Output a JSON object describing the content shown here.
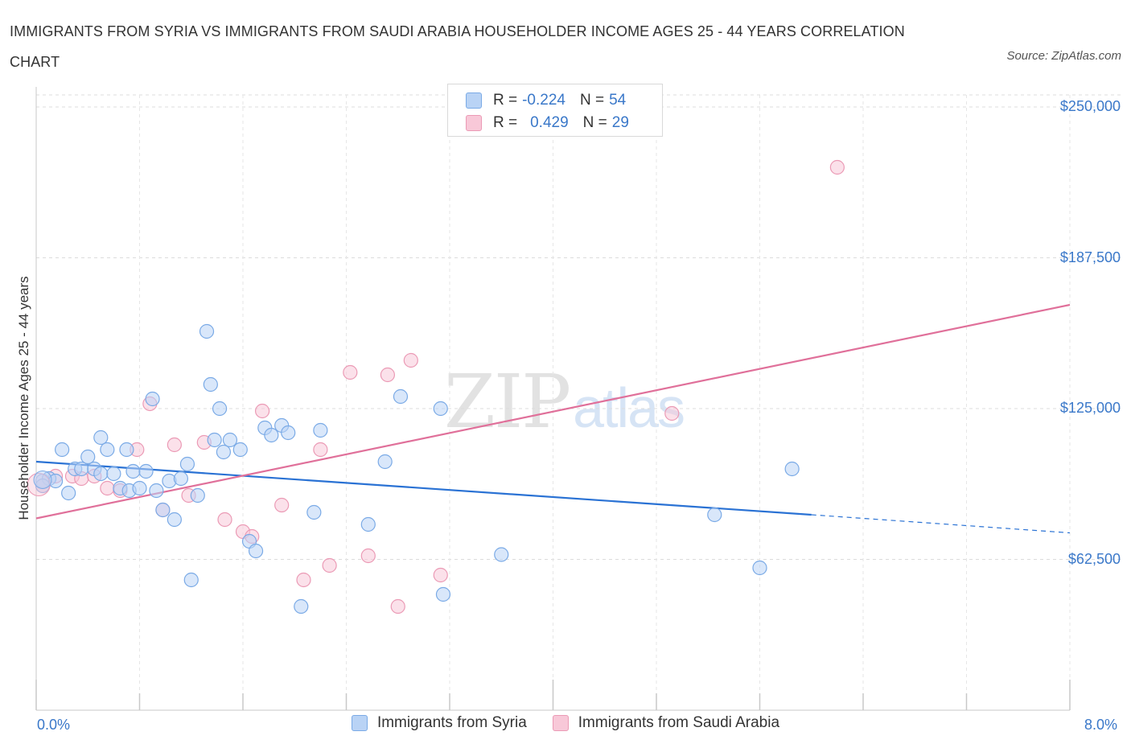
{
  "chart_data": {
    "type": "scatter",
    "title": "IMMIGRANTS FROM SYRIA VS IMMIGRANTS FROM SAUDI ARABIA HOUSEHOLDER INCOME AGES 25 - 44 YEARS CORRELATION CHART",
    "source": "Source: ZipAtlas.com",
    "xlabel": "",
    "ylabel": "Householder Income Ages 25 - 44 years",
    "xlim": [
      0,
      8
    ],
    "ylim": [
      0,
      250000
    ],
    "x_tick_labels": [
      "0.0%",
      "8.0%"
    ],
    "y_tick_values": [
      62500,
      125000,
      187500,
      250000
    ],
    "y_tick_labels": [
      "$62,500",
      "$125,000",
      "$187,500",
      "$250,000"
    ],
    "series": [
      {
        "name": "Immigrants from Syria",
        "color": "#7aaae6",
        "fill": "#b9d3f5",
        "line_color": "#2a72d4",
        "R": "-0.224",
        "N": "54",
        "trend": {
          "x0": 0.0,
          "y0": 103000,
          "x1": 6.0,
          "y1": 81000,
          "dash_x1": 8.0,
          "dash_y1": 73500
        },
        "points": [
          [
            0.05,
            95000
          ],
          [
            0.1,
            96000
          ],
          [
            0.15,
            95000
          ],
          [
            0.25,
            90000
          ],
          [
            0.2,
            108000
          ],
          [
            0.3,
            100000
          ],
          [
            0.35,
            100000
          ],
          [
            0.4,
            105000
          ],
          [
            0.45,
            100000
          ],
          [
            0.5,
            98000
          ],
          [
            0.5,
            113000
          ],
          [
            0.55,
            108000
          ],
          [
            0.6,
            98000
          ],
          [
            0.65,
            92000
          ],
          [
            0.7,
            108000
          ],
          [
            0.72,
            91000
          ],
          [
            0.75,
            99000
          ],
          [
            0.8,
            92000
          ],
          [
            0.85,
            99000
          ],
          [
            0.9,
            129000
          ],
          [
            0.93,
            91000
          ],
          [
            0.98,
            83000
          ],
          [
            1.03,
            95000
          ],
          [
            1.07,
            79000
          ],
          [
            1.12,
            96000
          ],
          [
            1.17,
            102000
          ],
          [
            1.2,
            54000
          ],
          [
            1.25,
            89000
          ],
          [
            1.32,
            157000
          ],
          [
            1.35,
            135000
          ],
          [
            1.38,
            112000
          ],
          [
            1.42,
            125000
          ],
          [
            1.45,
            107000
          ],
          [
            1.5,
            112000
          ],
          [
            1.58,
            108000
          ],
          [
            1.65,
            70000
          ],
          [
            1.7,
            66000
          ],
          [
            1.77,
            117000
          ],
          [
            1.82,
            114000
          ],
          [
            1.9,
            118000
          ],
          [
            1.95,
            115000
          ],
          [
            2.05,
            43000
          ],
          [
            2.15,
            82000
          ],
          [
            2.2,
            116000
          ],
          [
            2.57,
            77000
          ],
          [
            2.7,
            103000
          ],
          [
            2.82,
            130000
          ],
          [
            3.13,
            125000
          ],
          [
            3.15,
            48000
          ],
          [
            3.6,
            64500
          ],
          [
            5.25,
            81000
          ],
          [
            5.6,
            59000
          ],
          [
            5.85,
            100000
          ],
          [
            0.05,
            93000
          ]
        ]
      },
      {
        "name": "Immigrants from Saudi Arabia",
        "color": "#eb9ab5",
        "fill": "#f8c8d8",
        "line_color": "#e0709a",
        "R": "0.429",
        "N": "29",
        "trend": {
          "x0": 0.0,
          "y0": 79500,
          "x1": 8.0,
          "y1": 168000
        },
        "points": [
          [
            0.05,
            93000
          ],
          [
            0.15,
            97000
          ],
          [
            0.28,
            97000
          ],
          [
            0.35,
            96000
          ],
          [
            0.45,
            97000
          ],
          [
            0.55,
            92000
          ],
          [
            0.65,
            91000
          ],
          [
            0.78,
            108000
          ],
          [
            0.88,
            127000
          ],
          [
            0.98,
            83000
          ],
          [
            1.07,
            110000
          ],
          [
            1.18,
            89000
          ],
          [
            1.3,
            111000
          ],
          [
            1.46,
            79000
          ],
          [
            1.6,
            74000
          ],
          [
            1.67,
            72000
          ],
          [
            1.75,
            124000
          ],
          [
            1.9,
            85000
          ],
          [
            2.07,
            54000
          ],
          [
            2.2,
            108000
          ],
          [
            2.27,
            60000
          ],
          [
            2.43,
            140000
          ],
          [
            2.57,
            64000
          ],
          [
            2.72,
            139000
          ],
          [
            2.8,
            43000
          ],
          [
            2.9,
            145000
          ],
          [
            3.13,
            56000
          ],
          [
            4.92,
            123000
          ],
          [
            6.2,
            225000
          ]
        ]
      }
    ],
    "legend": {
      "r_label": "R =",
      "n_label": "N =",
      "position": "top-center"
    },
    "watermark": {
      "zip": "ZIP",
      "atlas": "atlas"
    }
  }
}
